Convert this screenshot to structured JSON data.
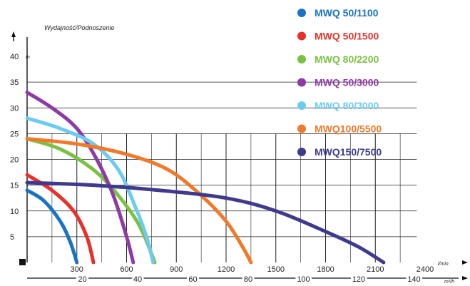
{
  "chart_data": {
    "type": "line",
    "title": "",
    "ylabel": "Wydajność/Podnoszenie",
    "y_unit": "m",
    "x_unit": "l/min",
    "x2_unit": "m³/h",
    "xlim": [
      0,
      2400
    ],
    "ylim": [
      0,
      40
    ],
    "y_ticks": [
      5,
      10,
      15,
      20,
      25,
      30,
      35,
      40
    ],
    "x_ticks": [
      300,
      600,
      900,
      1200,
      1500,
      1800,
      2100,
      2400
    ],
    "x2_ticks": [
      20,
      40,
      60,
      80,
      100,
      120,
      140
    ],
    "legend_position": "top-right",
    "grid": true,
    "series": [
      {
        "name": "MWQ 50/1100",
        "color": "#1a73c2",
        "x": [
          0,
          100,
          200,
          260,
          300
        ],
        "y": [
          14,
          12,
          8,
          4,
          0
        ]
      },
      {
        "name": "MWQ 50/1500",
        "color": "#e8302b",
        "x": [
          0,
          150,
          280,
          360,
          400
        ],
        "y": [
          17,
          14,
          10,
          5,
          0
        ]
      },
      {
        "name": "MWQ 80/2200",
        "color": "#7ac143",
        "x": [
          0,
          200,
          400,
          550,
          680,
          770
        ],
        "y": [
          24,
          22,
          18,
          13,
          7,
          0
        ]
      },
      {
        "name": "MWQ 50/3000",
        "color": "#8e3aa5",
        "x": [
          0,
          150,
          300,
          420,
          520,
          600,
          640
        ],
        "y": [
          33,
          30,
          26,
          20,
          13,
          5,
          0
        ]
      },
      {
        "name": "MWQ 80/3000",
        "color": "#6ccbf0",
        "x": [
          0,
          200,
          400,
          550,
          650,
          720,
          760
        ],
        "y": [
          28,
          26,
          23,
          18,
          11,
          5,
          0
        ]
      },
      {
        "name": "MWQ100/5500",
        "color": "#f07a2a",
        "x": [
          0,
          300,
          600,
          850,
          1050,
          1200,
          1300,
          1350
        ],
        "y": [
          24,
          23,
          21,
          18,
          13,
          8,
          3,
          0
        ]
      },
      {
        "name": "MWQ150/7500",
        "color": "#3f3a8e",
        "x": [
          0,
          400,
          800,
          1200,
          1500,
          1800,
          2000,
          2150
        ],
        "y": [
          15.5,
          15,
          14,
          12.5,
          10,
          6,
          3,
          0
        ]
      }
    ]
  }
}
